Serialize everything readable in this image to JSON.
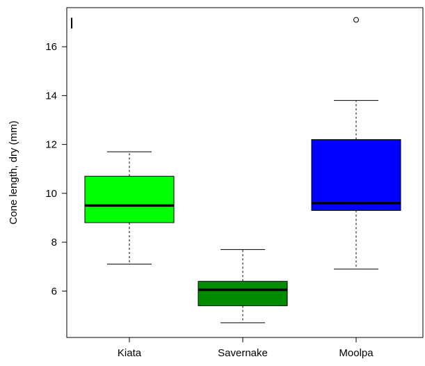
{
  "chart_data": {
    "type": "boxplot",
    "panel_label": "I",
    "ylabel": "Cone length, dry (mm)",
    "xlabel": "",
    "ylim": [
      4.1,
      17.6
    ],
    "yticks": [
      6,
      8,
      10,
      12,
      14,
      16
    ],
    "grid": false,
    "categories": [
      "Kiata",
      "Savernake",
      "Moolpa"
    ],
    "boxes": [
      {
        "category": "Kiata",
        "whisker_low": 7.1,
        "q1": 8.8,
        "median": 9.5,
        "q3": 10.7,
        "whisker_high": 11.7,
        "outliers": [],
        "color": "#00ff00"
      },
      {
        "category": "Savernake",
        "whisker_low": 4.7,
        "q1": 5.4,
        "median": 6.05,
        "q3": 6.4,
        "whisker_high": 7.7,
        "outliers": [],
        "color": "#008b00"
      },
      {
        "category": "Moolpa",
        "whisker_low": 6.9,
        "q1": 9.3,
        "median": 9.6,
        "q3": 12.2,
        "whisker_high": 13.8,
        "outliers": [
          17.1
        ],
        "color": "#0000ff"
      }
    ]
  }
}
